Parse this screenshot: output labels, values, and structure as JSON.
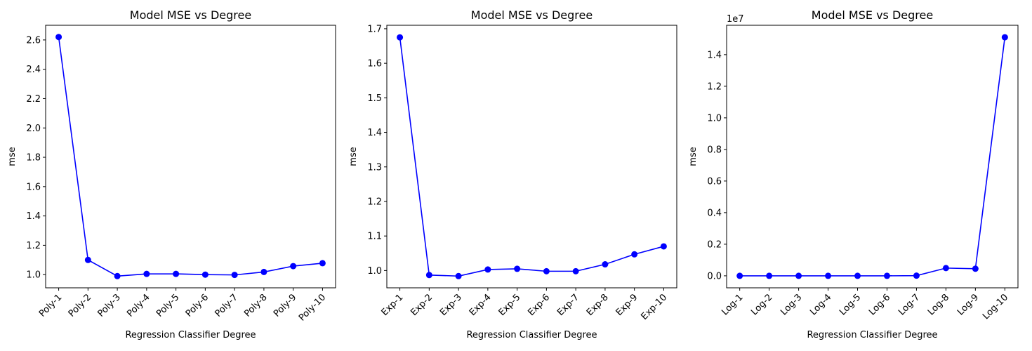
{
  "chart_data": [
    {
      "type": "line",
      "title": "Model MSE vs Degree",
      "xlabel": "Regression Classifier Degree",
      "ylabel": "mse",
      "categories": [
        "Poly-1",
        "Poly-2",
        "Poly-3",
        "Poly-4",
        "Poly-5",
        "Poly-6",
        "Poly-7",
        "Poly-8",
        "Poly-9",
        "Poly-10"
      ],
      "values": [
        2.62,
        1.1,
        0.99,
        1.005,
        1.005,
        1.0,
        0.998,
        1.018,
        1.058,
        1.078
      ],
      "ylim": [
        0.91,
        2.7
      ],
      "yticks": [
        1.0,
        1.2,
        1.4,
        1.6,
        1.8,
        2.0,
        2.2,
        2.4,
        2.6
      ],
      "ytick_labels": [
        "1.0",
        "1.2",
        "1.4",
        "1.6",
        "1.8",
        "2.0",
        "2.2",
        "2.4",
        "2.6"
      ],
      "offset_label": "",
      "color": "#0000ff",
      "grid": false
    },
    {
      "type": "line",
      "title": "Model MSE vs Degree",
      "xlabel": "Regression Classifier Degree",
      "ylabel": "mse",
      "categories": [
        "Exp-1",
        "Exp-2",
        "Exp-3",
        "Exp-4",
        "Exp-5",
        "Exp-6",
        "Exp-7",
        "Exp-8",
        "Exp-9",
        "Exp-10"
      ],
      "values": [
        1.675,
        0.987,
        0.984,
        1.003,
        1.005,
        0.998,
        0.998,
        1.018,
        1.047,
        1.07
      ],
      "ylim": [
        0.95,
        1.71
      ],
      "yticks": [
        1.0,
        1.1,
        1.2,
        1.3,
        1.4,
        1.5,
        1.6,
        1.7
      ],
      "ytick_labels": [
        "1.0",
        "1.1",
        "1.2",
        "1.3",
        "1.4",
        "1.5",
        "1.6",
        "1.7"
      ],
      "offset_label": "",
      "color": "#0000ff",
      "grid": false
    },
    {
      "type": "line",
      "title": "Model MSE vs Degree",
      "xlabel": "Regression Classifier Degree",
      "ylabel": "mse",
      "categories": [
        "Log-1",
        "Log-2",
        "Log-3",
        "Log-4",
        "Log-5",
        "Log-6",
        "Log-7",
        "Log-8",
        "Log-9",
        "Log-10"
      ],
      "values": [
        0.0,
        0.0,
        0.0,
        0.0,
        0.0,
        0.0,
        0.01,
        0.49,
        0.45,
        15.1
      ],
      "ylim": [
        -0.76,
        15.86
      ],
      "yticks": [
        0.0,
        2.0,
        4.0,
        6.0,
        8.0,
        10.0,
        12.0,
        14.0
      ],
      "ytick_labels": [
        "0.0",
        "0.2",
        "0.4",
        "0.6",
        "0.8",
        "1.0",
        "1.2",
        "1.4"
      ],
      "offset_label": "1e7",
      "color": "#0000ff",
      "grid": false
    }
  ]
}
